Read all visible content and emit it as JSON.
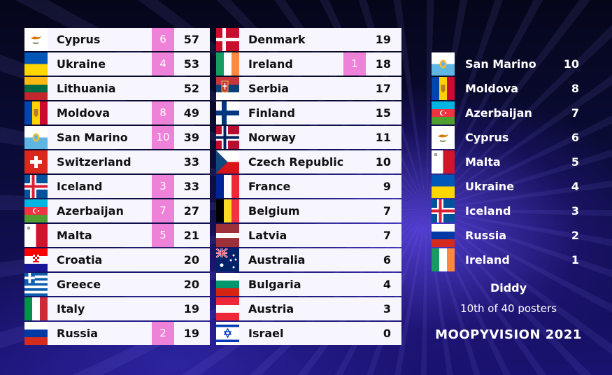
{
  "scoreboard_left": [
    {
      "country": "Cyprus",
      "points": "6",
      "total": "57",
      "flag": "cyprus-flag-icon"
    },
    {
      "country": "Ukraine",
      "points": "4",
      "total": "53",
      "flag": "ukraine-flag-icon"
    },
    {
      "country": "Lithuania",
      "points": "",
      "total": "52",
      "flag": "lithuania-flag-icon"
    },
    {
      "country": "Moldova",
      "points": "8",
      "total": "49",
      "flag": "moldova-flag-icon"
    },
    {
      "country": "San Marino",
      "points": "10",
      "total": "39",
      "flag": "san-marino-flag-icon"
    },
    {
      "country": "Switzerland",
      "points": "",
      "total": "33",
      "flag": "switzerland-flag-icon"
    },
    {
      "country": "Iceland",
      "points": "3",
      "total": "33",
      "flag": "iceland-flag-icon"
    },
    {
      "country": "Azerbaijan",
      "points": "7",
      "total": "27",
      "flag": "azerbaijan-flag-icon"
    },
    {
      "country": "Malta",
      "points": "5",
      "total": "21",
      "flag": "malta-flag-icon"
    },
    {
      "country": "Croatia",
      "points": "",
      "total": "20",
      "flag": "croatia-flag-icon"
    },
    {
      "country": "Greece",
      "points": "",
      "total": "20",
      "flag": "greece-flag-icon"
    },
    {
      "country": "Italy",
      "points": "",
      "total": "19",
      "flag": "italy-flag-icon"
    },
    {
      "country": "Russia",
      "points": "2",
      "total": "19",
      "flag": "russia-flag-icon"
    }
  ],
  "scoreboard_mid": [
    {
      "country": "Denmark",
      "points": "",
      "total": "19",
      "flag": "denmark-flag-icon"
    },
    {
      "country": "Ireland",
      "points": "1",
      "total": "18",
      "flag": "ireland-flag-icon"
    },
    {
      "country": "Serbia",
      "points": "",
      "total": "17",
      "flag": "serbia-flag-icon"
    },
    {
      "country": "Finland",
      "points": "",
      "total": "15",
      "flag": "finland-flag-icon"
    },
    {
      "country": "Norway",
      "points": "",
      "total": "11",
      "flag": "norway-flag-icon"
    },
    {
      "country": "Czech Republic",
      "points": "",
      "total": "10",
      "flag": "czech-republic-flag-icon"
    },
    {
      "country": "France",
      "points": "",
      "total": "9",
      "flag": "france-flag-icon"
    },
    {
      "country": "Belgium",
      "points": "",
      "total": "7",
      "flag": "belgium-flag-icon"
    },
    {
      "country": "Latvia",
      "points": "",
      "total": "7",
      "flag": "latvia-flag-icon"
    },
    {
      "country": "Australia",
      "points": "",
      "total": "6",
      "flag": "australia-flag-icon"
    },
    {
      "country": "Bulgaria",
      "points": "",
      "total": "4",
      "flag": "bulgaria-flag-icon"
    },
    {
      "country": "Austria",
      "points": "",
      "total": "3",
      "flag": "austria-flag-icon"
    },
    {
      "country": "Israel",
      "points": "",
      "total": "0",
      "flag": "israel-flag-icon"
    }
  ],
  "voting": [
    {
      "country": "San Marino",
      "score": "10",
      "flag": "san-marino-flag-icon"
    },
    {
      "country": "Moldova",
      "score": "8",
      "flag": "moldova-flag-icon"
    },
    {
      "country": "Azerbaijan",
      "score": "7",
      "flag": "azerbaijan-flag-icon"
    },
    {
      "country": "Cyprus",
      "score": "6",
      "flag": "cyprus-flag-icon"
    },
    {
      "country": "Malta",
      "score": "5",
      "flag": "malta-flag-icon"
    },
    {
      "country": "Ukraine",
      "score": "4",
      "flag": "ukraine-flag-icon"
    },
    {
      "country": "Iceland",
      "score": "3",
      "flag": "iceland-flag-icon"
    },
    {
      "country": "Russia",
      "score": "2",
      "flag": "russia-flag-icon"
    },
    {
      "country": "Ireland",
      "score": "1",
      "flag": "ireland-flag-icon"
    }
  ],
  "footer": {
    "voter": "Diddy",
    "rank": "10th of 40 posters",
    "brand": "MOOPYVISION 2021"
  },
  "colors": {
    "row_bg": "#f7f6fe",
    "points_badge": "#ee82d8",
    "text_dark": "#111111",
    "text_light": "#ffffff"
  }
}
